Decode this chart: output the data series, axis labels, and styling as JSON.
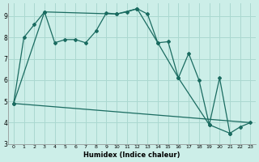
{
  "xlabel": "Humidex (Indice chaleur)",
  "bg_color": "#cceee8",
  "grid_color": "#aad8d0",
  "line_color": "#1a6b60",
  "xlim": [
    -0.5,
    23.5
  ],
  "ylim": [
    3,
    9.6
  ],
  "yticks": [
    3,
    4,
    5,
    6,
    7,
    8,
    9
  ],
  "xticks": [
    0,
    1,
    2,
    3,
    4,
    5,
    6,
    7,
    8,
    9,
    10,
    11,
    12,
    13,
    14,
    15,
    16,
    17,
    18,
    19,
    20,
    21,
    22,
    23
  ],
  "line1_x": [
    0,
    1,
    2,
    3,
    4,
    5,
    6,
    7,
    8,
    9,
    10,
    11,
    12,
    13,
    14,
    15,
    16,
    17,
    18,
    19,
    20,
    21,
    22,
    23
  ],
  "line1_y": [
    4.9,
    8.0,
    8.6,
    9.2,
    7.75,
    7.9,
    7.9,
    7.75,
    8.3,
    9.15,
    9.1,
    9.2,
    9.35,
    9.1,
    7.75,
    7.8,
    6.1,
    7.25,
    6.0,
    3.9,
    6.1,
    3.5,
    3.8,
    4.0
  ],
  "line2_x": [
    0,
    3,
    10,
    12,
    14,
    16,
    19,
    21
  ],
  "line2_y": [
    4.9,
    9.2,
    9.1,
    9.35,
    7.75,
    6.1,
    3.9,
    3.5
  ],
  "line3_x": [
    0,
    23
  ],
  "line3_y": [
    4.9,
    4.0
  ]
}
